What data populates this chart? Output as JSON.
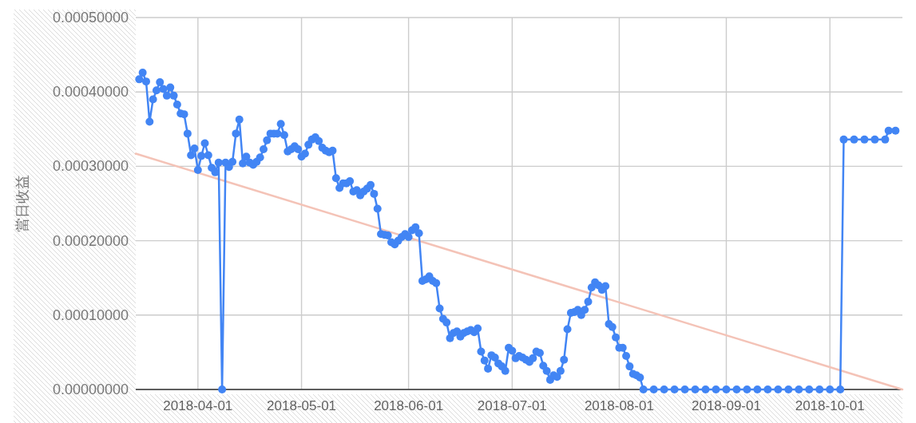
{
  "chart_data": {
    "type": "line",
    "ylabel": "當日收益",
    "xlim": [
      "2018-03-14",
      "2018-10-22"
    ],
    "xticks": [
      "2018-04-01",
      "2018-05-01",
      "2018-06-01",
      "2018-07-01",
      "2018-08-01",
      "2018-09-01",
      "2018-10-01"
    ],
    "ylim": [
      0,
      0.0005
    ],
    "yticks": [
      {
        "value": 0,
        "label": "0.00000000"
      },
      {
        "value": 0.0001,
        "label": "0.00010000"
      },
      {
        "value": 0.0002,
        "label": "0.00020000"
      },
      {
        "value": 0.0003,
        "label": "0.00030000"
      },
      {
        "value": 0.0004,
        "label": "0.00040000"
      },
      {
        "value": 0.0005,
        "label": "0.00050000"
      }
    ],
    "grid": true,
    "marker": "circle",
    "line_style": "solid",
    "series": [
      {
        "type": "line",
        "color": "#f4c3b7",
        "marker": "none",
        "x": [
          "2018-03-14",
          "2018-10-22"
        ],
        "values": [
          0.000317,
          0.0
        ]
      },
      {
        "color": "#4285f4",
        "x": [
          "2018-03-15",
          "2018-03-16",
          "2018-03-17",
          "2018-03-18",
          "2018-03-19",
          "2018-03-20",
          "2018-03-21",
          "2018-03-22",
          "2018-03-23",
          "2018-03-24",
          "2018-03-25",
          "2018-03-26",
          "2018-03-27",
          "2018-03-28",
          "2018-03-29",
          "2018-03-30",
          "2018-03-31",
          "2018-04-01",
          "2018-04-02",
          "2018-04-03",
          "2018-04-04",
          "2018-04-05",
          "2018-04-06",
          "2018-04-07",
          "2018-04-08",
          "2018-04-09",
          "2018-04-10",
          "2018-04-11",
          "2018-04-12",
          "2018-04-13",
          "2018-04-14",
          "2018-04-15",
          "2018-04-16",
          "2018-04-17",
          "2018-04-18",
          "2018-04-19",
          "2018-04-20",
          "2018-04-21",
          "2018-04-22",
          "2018-04-23",
          "2018-04-24",
          "2018-04-25",
          "2018-04-26",
          "2018-04-27",
          "2018-04-28",
          "2018-04-29",
          "2018-04-30",
          "2018-05-01",
          "2018-05-02",
          "2018-05-03",
          "2018-05-04",
          "2018-05-05",
          "2018-05-06",
          "2018-05-07",
          "2018-05-08",
          "2018-05-09",
          "2018-05-10",
          "2018-05-11",
          "2018-05-12",
          "2018-05-13",
          "2018-05-14",
          "2018-05-15",
          "2018-05-16",
          "2018-05-17",
          "2018-05-18",
          "2018-05-19",
          "2018-05-20",
          "2018-05-21",
          "2018-05-22",
          "2018-05-23",
          "2018-05-24",
          "2018-05-25",
          "2018-05-26",
          "2018-05-27",
          "2018-05-28",
          "2018-05-29",
          "2018-05-30",
          "2018-05-31",
          "2018-06-01",
          "2018-06-02",
          "2018-06-03",
          "2018-06-04",
          "2018-06-05",
          "2018-06-06",
          "2018-06-07",
          "2018-06-08",
          "2018-06-09",
          "2018-06-10",
          "2018-06-11",
          "2018-06-12",
          "2018-06-13",
          "2018-06-14",
          "2018-06-15",
          "2018-06-16",
          "2018-06-17",
          "2018-06-18",
          "2018-06-19",
          "2018-06-20",
          "2018-06-21",
          "2018-06-22",
          "2018-06-23",
          "2018-06-24",
          "2018-06-25",
          "2018-06-26",
          "2018-06-27",
          "2018-06-28",
          "2018-06-29",
          "2018-06-30",
          "2018-07-01",
          "2018-07-02",
          "2018-07-03",
          "2018-07-04",
          "2018-07-05",
          "2018-07-06",
          "2018-07-07",
          "2018-07-08",
          "2018-07-09",
          "2018-07-10",
          "2018-07-11",
          "2018-07-12",
          "2018-07-13",
          "2018-07-14",
          "2018-07-15",
          "2018-07-16",
          "2018-07-17",
          "2018-07-18",
          "2018-07-19",
          "2018-07-20",
          "2018-07-21",
          "2018-07-22",
          "2018-07-23",
          "2018-07-24",
          "2018-07-25",
          "2018-07-26",
          "2018-07-27",
          "2018-07-28",
          "2018-07-29",
          "2018-07-30",
          "2018-07-31",
          "2018-08-01",
          "2018-08-02",
          "2018-08-03",
          "2018-08-04",
          "2018-08-05",
          "2018-08-06",
          "2018-08-07",
          "2018-08-08",
          "2018-08-11",
          "2018-08-14",
          "2018-08-17",
          "2018-08-20",
          "2018-08-23",
          "2018-08-26",
          "2018-08-29",
          "2018-09-01",
          "2018-09-04",
          "2018-09-07",
          "2018-09-10",
          "2018-09-13",
          "2018-09-16",
          "2018-09-19",
          "2018-09-22",
          "2018-09-25",
          "2018-09-28",
          "2018-10-01",
          "2018-10-04",
          "2018-10-05",
          "2018-10-08",
          "2018-10-11",
          "2018-10-14",
          "2018-10-17",
          "2018-10-18",
          "2018-10-20"
        ],
        "values": [
          0.000417,
          0.000426,
          0.000414,
          0.00036,
          0.00039,
          0.000402,
          0.000413,
          0.000404,
          0.000395,
          0.000406,
          0.000395,
          0.000383,
          0.000371,
          0.00037,
          0.000344,
          0.000315,
          0.000324,
          0.000295,
          0.000314,
          0.000331,
          0.000315,
          0.000298,
          0.000292,
          0.000305,
          0.0,
          0.000305,
          0.000299,
          0.000306,
          0.000344,
          0.000363,
          0.000304,
          0.000313,
          0.000305,
          0.000302,
          0.000306,
          0.000312,
          0.000323,
          0.000335,
          0.000344,
          0.000344,
          0.000344,
          0.000357,
          0.000342,
          0.00032,
          0.000323,
          0.000327,
          0.000323,
          0.000313,
          0.000317,
          0.000329,
          0.000336,
          0.000339,
          0.000334,
          0.000325,
          0.000321,
          0.000319,
          0.000321,
          0.000284,
          0.000271,
          0.000277,
          0.000277,
          0.00028,
          0.000266,
          0.000268,
          0.000261,
          0.000266,
          0.00027,
          0.000275,
          0.000263,
          0.000243,
          0.000209,
          0.000208,
          0.000207,
          0.000198,
          0.000195,
          0.0002,
          0.000205,
          0.000209,
          0.000205,
          0.000214,
          0.000218,
          0.00021,
          0.000146,
          0.000148,
          0.000152,
          0.000146,
          0.000143,
          0.000109,
          9.5e-05,
          9e-05,
          6.9e-05,
          7.6e-05,
          7.8e-05,
          7.1e-05,
          7.6e-05,
          7.8e-05,
          8e-05,
          7.7e-05,
          8.2e-05,
          5.1e-05,
          3.9e-05,
          2.8e-05,
          4.6e-05,
          4.3e-05,
          3.5e-05,
          3.1e-05,
          2.5e-05,
          5.6e-05,
          5.2e-05,
          4.2e-05,
          4.5e-05,
          4.3e-05,
          4e-05,
          3.7e-05,
          4.2e-05,
          5.1e-05,
          4.9e-05,
          3.2e-05,
          2.5e-05,
          1.3e-05,
          1.9e-05,
          1.7e-05,
          2.5e-05,
          4e-05,
          8.1e-05,
          0.000103,
          0.000104,
          0.000107,
          0.0001,
          0.000107,
          0.000118,
          0.000137,
          0.000144,
          0.00014,
          0.000134,
          0.000139,
          8.8e-05,
          8.4e-05,
          7e-05,
          5.6e-05,
          5.6e-05,
          4.5e-05,
          3.1e-05,
          2.1e-05,
          1.9e-05,
          1.6e-05,
          0.0,
          0.0,
          0.0,
          0.0,
          0.0,
          0.0,
          0.0,
          0.0,
          0.0,
          0.0,
          0.0,
          0.0,
          0.0,
          0.0,
          0.0,
          0.0,
          0.0,
          0.0,
          0.0,
          0.0,
          0.000336,
          0.000336,
          0.000336,
          0.000336,
          0.000336,
          0.000348,
          0.000348
        ]
      }
    ]
  }
}
